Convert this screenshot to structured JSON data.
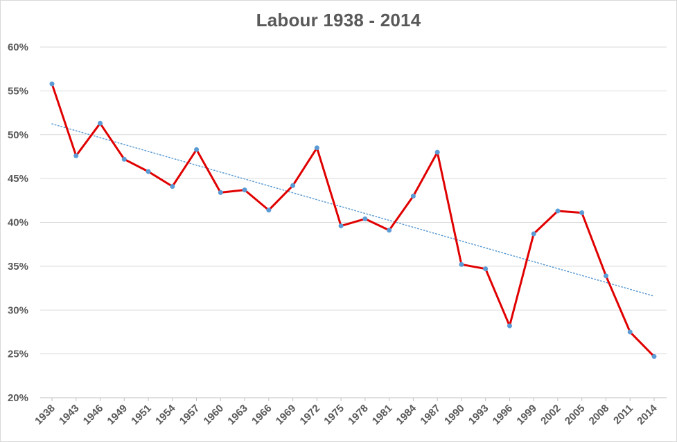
{
  "chart_data": {
    "type": "line",
    "title": "Labour 1938 - 2014",
    "xlabel": "",
    "ylabel": "",
    "categories": [
      "1938",
      "1943",
      "1946",
      "1949",
      "1951",
      "1954",
      "1957",
      "1960",
      "1963",
      "1966",
      "1969",
      "1972",
      "1975",
      "1978",
      "1981",
      "1984",
      "1987",
      "1990",
      "1993",
      "1996",
      "1999",
      "2002",
      "2005",
      "2008",
      "2011",
      "2014"
    ],
    "series": [
      {
        "values": [
          55.8,
          47.6,
          51.3,
          47.2,
          45.8,
          44.1,
          48.3,
          43.4,
          43.7,
          41.4,
          44.2,
          48.5,
          39.6,
          40.4,
          39.1,
          43.0,
          48.0,
          35.2,
          34.7,
          28.2,
          38.7,
          41.3,
          41.1,
          33.9,
          27.5,
          24.7
        ],
        "color": "#e00000",
        "marker_color": "#5b9bd5"
      }
    ],
    "trendline": {
      "type": "linear",
      "color": "#5b9bd5",
      "style": "dotted"
    },
    "ylim": [
      20,
      60
    ],
    "yticks": [
      20,
      25,
      30,
      35,
      40,
      45,
      50,
      55,
      60
    ],
    "ytick_labels": [
      "20%",
      "25%",
      "30%",
      "35%",
      "40%",
      "45%",
      "50%",
      "55%",
      "60%"
    ],
    "grid": true,
    "legend": "none"
  }
}
